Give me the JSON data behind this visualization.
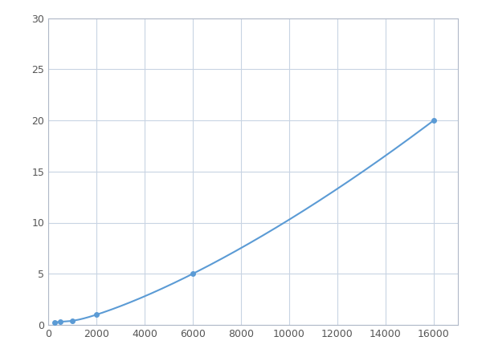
{
  "x": [
    250,
    500,
    1000,
    2000,
    6000,
    16000
  ],
  "y": [
    0.2,
    0.3,
    0.4,
    1.0,
    5.0,
    20.0
  ],
  "line_color": "#5b9bd5",
  "marker_color": "#5b9bd5",
  "marker_size": 4,
  "line_width": 1.5,
  "xlim": [
    0,
    17000
  ],
  "ylim": [
    0,
    30
  ],
  "xticks": [
    0,
    2000,
    4000,
    6000,
    8000,
    10000,
    12000,
    14000,
    16000
  ],
  "yticks": [
    0,
    5,
    10,
    15,
    20,
    25,
    30
  ],
  "grid_color": "#c8d4e3",
  "background_color": "#ffffff",
  "fig_width": 6.0,
  "fig_height": 4.5,
  "dpi": 100
}
